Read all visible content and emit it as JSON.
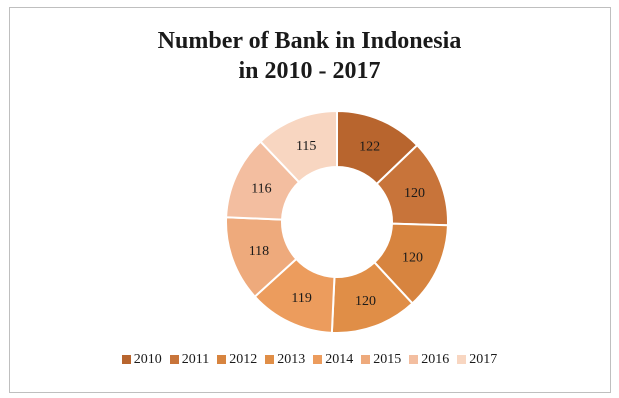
{
  "chart_data": {
    "type": "pie",
    "subtype": "doughnut",
    "title_lines": [
      "Number of Bank in Indonesia",
      "in 2010 - 2017"
    ],
    "categories": [
      "2010",
      "2011",
      "2012",
      "2013",
      "2014",
      "2015",
      "2016",
      "2017"
    ],
    "values": [
      122,
      120,
      120,
      120,
      119,
      118,
      116,
      115
    ],
    "colors": [
      "#b8652e",
      "#c8743a",
      "#d7843f",
      "#e08e47",
      "#ec9c5d",
      "#eeaa7c",
      "#f3bea0",
      "#f8d6c1"
    ],
    "legend_position": "bottom"
  }
}
